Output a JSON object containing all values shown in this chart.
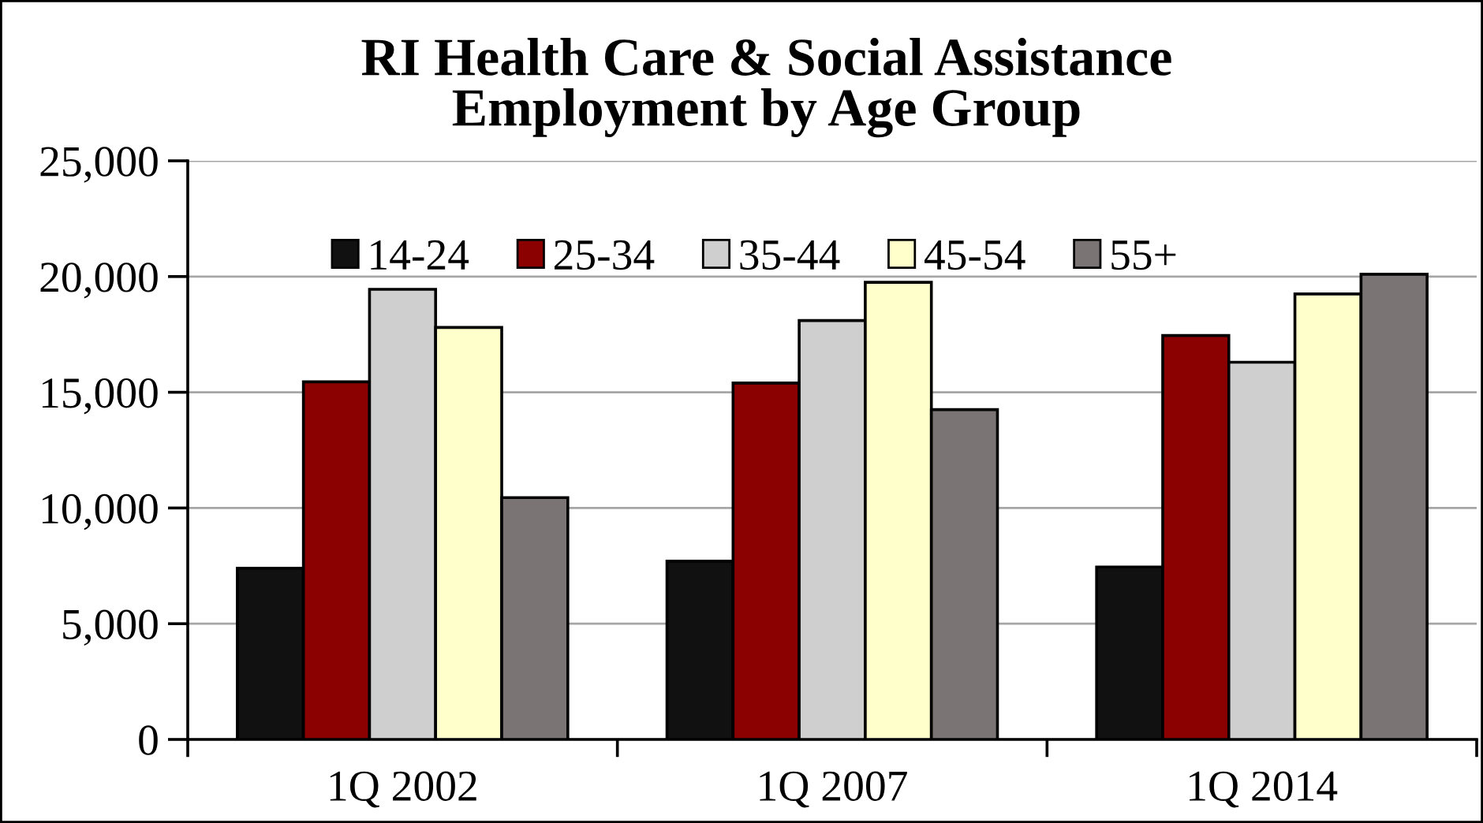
{
  "chart_data": {
    "type": "bar",
    "title": "RI Health Care & Social Assistance\nEmployment by Age Group",
    "categories": [
      "1Q 2002",
      "1Q 2007",
      "1Q 2014"
    ],
    "series": [
      {
        "name": "14-24",
        "color": "#111111",
        "values": [
          7400,
          7700,
          7450
        ]
      },
      {
        "name": "25-34",
        "color": "#8b0000",
        "values": [
          15450,
          15400,
          17450
        ]
      },
      {
        "name": "35-44",
        "color": "#d0cfd0",
        "values": [
          19450,
          18100,
          16300
        ]
      },
      {
        "name": "45-54",
        "color": "#ffffcc",
        "values": [
          17800,
          19750,
          19250
        ]
      },
      {
        "name": "55+",
        "color": "#7a7474",
        "values": [
          10450,
          14250,
          20100
        ]
      }
    ],
    "ylim": [
      0,
      25000
    ],
    "yticks": [
      0,
      {
        "value": 5000,
        "label": "5,000"
      },
      {
        "value": 10000,
        "label": "10,000"
      },
      {
        "value": 15000,
        "label": "15,000"
      },
      {
        "value": 20000,
        "label": "20,000"
      },
      {
        "value": 25000,
        "label": "25,000"
      }
    ],
    "grid": "y",
    "legend": "top"
  }
}
